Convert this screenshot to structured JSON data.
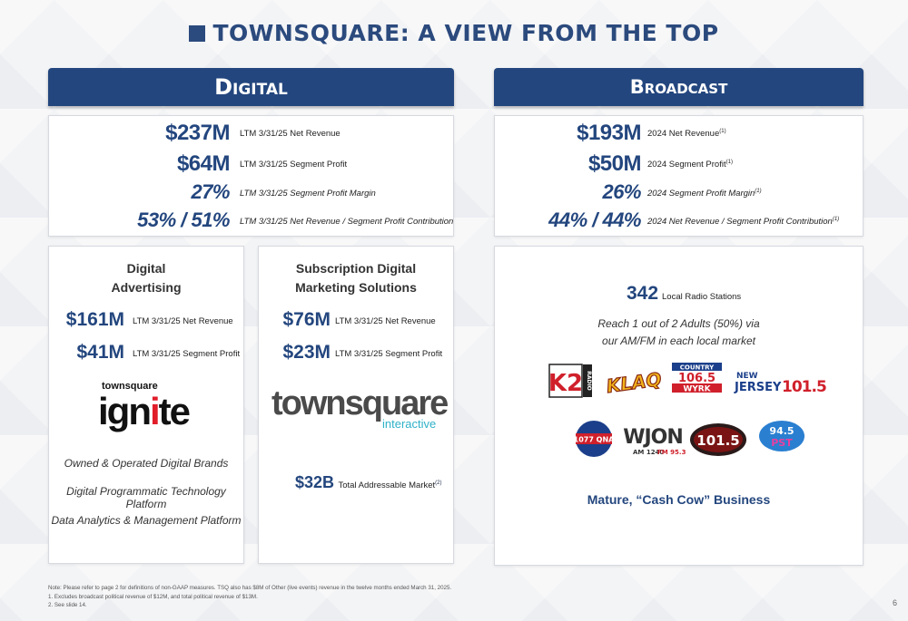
{
  "title": "TOWNSQUARE: A VIEW FROM THE TOP",
  "digital": {
    "banner": "Digital",
    "metrics": [
      {
        "value": "$237M",
        "label": "LTM 3/31/25 Net Revenue"
      },
      {
        "value": "$64M",
        "label": "LTM 3/31/25 Segment Profit"
      },
      {
        "value": "27%",
        "label": "LTM 3/31/25 Segment Profit Margin"
      },
      {
        "value": "53% / 51%",
        "label": "LTM 3/31/25 Net Revenue / Segment Profit Contribution"
      }
    ],
    "advertising": {
      "title_line1": "Digital",
      "title_line2": "Advertising",
      "rev_value": "$161M",
      "rev_label": "LTM 3/31/25 Net Revenue",
      "profit_value": "$41M",
      "profit_label": "LTM 3/31/25 Segment Profit",
      "logo_top": "townsquare",
      "logo_main_a": "ign",
      "logo_main_b": "i",
      "logo_main_c": "te",
      "bullets": [
        "Owned & Operated Digital Brands",
        "Digital Programmatic Technology Platform",
        "Data Analytics & Management Platform"
      ]
    },
    "subscription": {
      "title_line1": "Subscription Digital",
      "title_line2": "Marketing Solutions",
      "rev_value": "$76M",
      "rev_label": "LTM 3/31/25 Net Revenue",
      "profit_value": "$23M",
      "profit_label": "LTM 3/31/25 Segment Profit",
      "logo_main": "townsquare",
      "logo_sub": "interactive",
      "tam_value": "$32B",
      "tam_label": "Total Addressable Market",
      "tam_sup": "(2)"
    }
  },
  "broadcast": {
    "banner": "Broadcast",
    "metrics": [
      {
        "value": "$193M",
        "label": "2024 Net Revenue",
        "sup": "(1)"
      },
      {
        "value": "$50M",
        "label": "2024 Segment Profit",
        "sup": "(1)"
      },
      {
        "value": "26%",
        "label": "2024 Segment Profit Margin",
        "sup": "(1)"
      },
      {
        "value": "44% / 44%",
        "label": "2024 Net Revenue / Segment Profit Contribution",
        "sup": "(1)"
      }
    ],
    "stations_value": "342",
    "stations_label": "Local Radio Stations",
    "reach_line1": "Reach 1 out of 2 Adults (50%) via",
    "reach_line2": "our AM/FM in each local market",
    "logos": {
      "k2_big": "K2",
      "k2_side": "RADIO",
      "klaq": "KLAQ",
      "country_top": "COUNTRY",
      "country_num": "106.5",
      "country_call": "WYRK",
      "nj_top": "NEW",
      "nj_main": "JERSEY",
      "nj_num": "101.5",
      "qna_num": "1077 QNA",
      "wjon_main": "WJON",
      "wjon_sub_am": "AM 1240",
      "wjon_sub_fm": "FM 95.3",
      "b1015": "101.5",
      "pst_num": "94.5",
      "pst_call": "PST"
    },
    "cash_cow": "Mature, “Cash Cow” Business"
  },
  "notes": [
    "Note: Please refer to page 2 for definitions of non-GAAP measures.  TSQ also has $8M of Other (live events) revenue in the twelve months ended March 31, 2025.",
    "1.  Excludes broadcast political revenue of $12M, and total political revenue of $13M.",
    "2.  See slide 14."
  ],
  "page_number": "6",
  "colors": {
    "navy": "#23467e",
    "red": "#e11d2a",
    "teal": "#2fb1c8"
  }
}
